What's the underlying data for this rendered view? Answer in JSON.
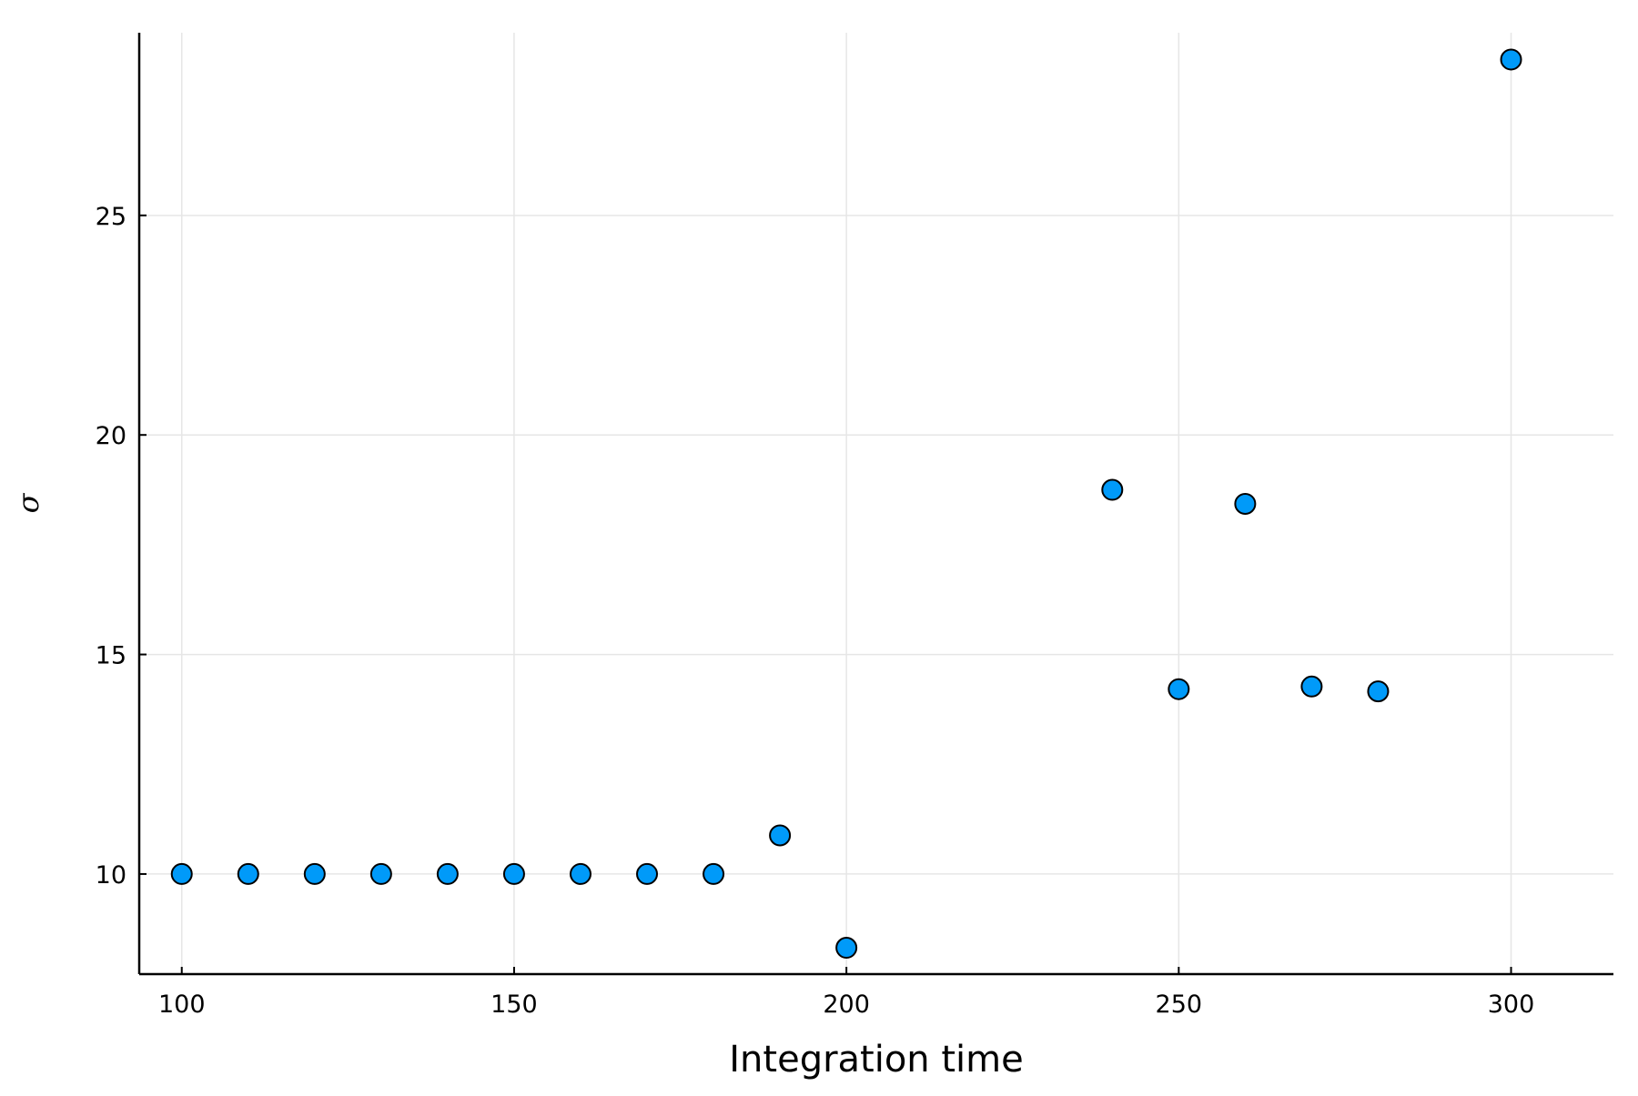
{
  "chart_data": {
    "type": "scatter",
    "title": "",
    "xlabel": "Integration time",
    "ylabel": "σ",
    "xlim": [
      93.6,
      315.4
    ],
    "ylim": [
      7.72,
      29.16
    ],
    "xticks": [
      100,
      150,
      200,
      250,
      300
    ],
    "yticks": [
      10,
      15,
      20,
      25
    ],
    "xtick_labels": [
      "100",
      "150",
      "200",
      "250",
      "300"
    ],
    "ytick_labels": [
      "10",
      "15",
      "20",
      "25"
    ],
    "grid": true,
    "legend": "none",
    "marker_color": "#009af9",
    "series": [
      {
        "name": "σ",
        "x": [
          100,
          110,
          120,
          130,
          140,
          150,
          160,
          170,
          180,
          190,
          200,
          240,
          250,
          260,
          270,
          280,
          300
        ],
        "y": [
          10.0,
          10.0,
          10.0,
          10.0,
          10.0,
          10.0,
          10.0,
          10.0,
          10.0,
          10.88,
          8.32,
          18.75,
          14.21,
          18.43,
          14.27,
          14.16,
          28.55
        ]
      }
    ]
  }
}
